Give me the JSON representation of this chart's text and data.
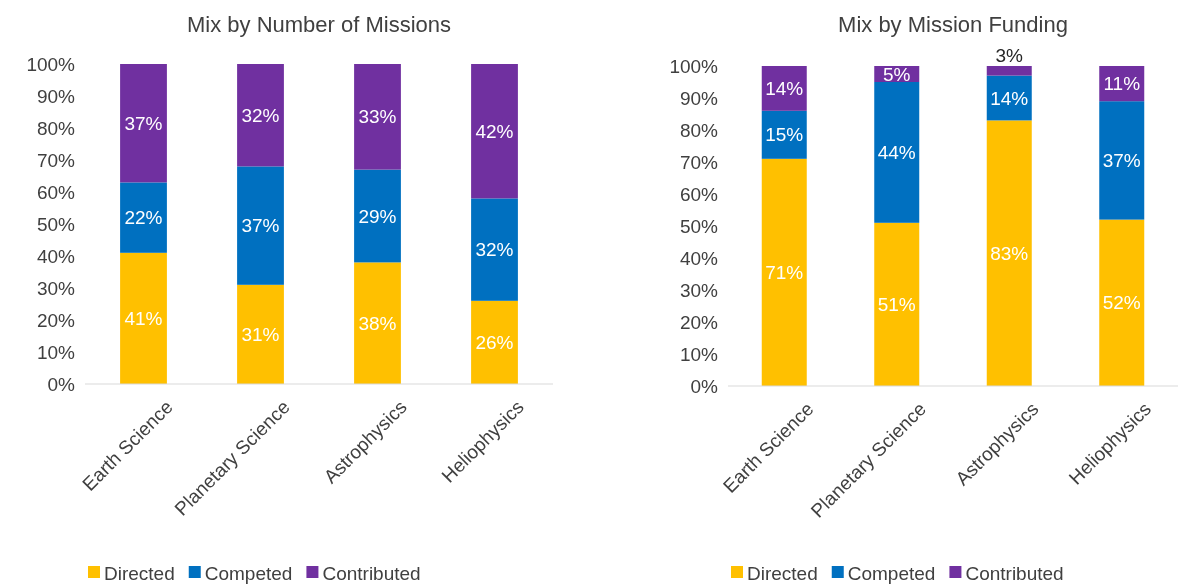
{
  "chart_data": [
    {
      "type": "bar",
      "title": "Mix by Number of Missions",
      "stacked": true,
      "legend": "bottom",
      "grid": false,
      "categories": [
        "Earth Science",
        "Planetary Science",
        "Astrophysics",
        "Heliophysics"
      ],
      "ylim": [
        0,
        100
      ],
      "yticks": [
        {
          "value": 0,
          "label": "0%"
        },
        {
          "value": 10,
          "label": "10%"
        },
        {
          "value": 20,
          "label": "20%"
        },
        {
          "value": 30,
          "label": "30%"
        },
        {
          "value": 40,
          "label": "40%"
        },
        {
          "value": 50,
          "label": "50%"
        },
        {
          "value": 60,
          "label": "60%"
        },
        {
          "value": 70,
          "label": "70%"
        },
        {
          "value": 80,
          "label": "80%"
        },
        {
          "value": 90,
          "label": "90%"
        },
        {
          "value": 100,
          "label": "100%"
        }
      ],
      "series": [
        {
          "name": "Directed",
          "color": "#ffc000",
          "values": [
            41,
            31,
            38,
            26
          ],
          "value_labels": [
            "41%",
            "31%",
            "38%",
            "26%"
          ]
        },
        {
          "name": "Competed",
          "color": "#0070c0",
          "values": [
            22,
            37,
            29,
            32
          ],
          "value_labels": [
            "22%",
            "37%",
            "29%",
            "32%"
          ]
        },
        {
          "name": "Contributed",
          "color": "#7030a0",
          "values": [
            37,
            32,
            33,
            42
          ],
          "value_labels": [
            "37%",
            "32%",
            "33%",
            "42%"
          ]
        }
      ]
    },
    {
      "type": "bar",
      "title": "Mix by Mission Funding",
      "stacked": true,
      "legend": "bottom",
      "grid": false,
      "categories": [
        "Earth Science",
        "Planetary Science",
        "Astrophysics",
        "Heliophysics"
      ],
      "ylim": [
        0,
        100
      ],
      "yticks": [
        {
          "value": 0,
          "label": "0%"
        },
        {
          "value": 10,
          "label": "10%"
        },
        {
          "value": 20,
          "label": "20%"
        },
        {
          "value": 30,
          "label": "30%"
        },
        {
          "value": 40,
          "label": "40%"
        },
        {
          "value": 50,
          "label": "50%"
        },
        {
          "value": 60,
          "label": "60%"
        },
        {
          "value": 70,
          "label": "70%"
        },
        {
          "value": 80,
          "label": "80%"
        },
        {
          "value": 90,
          "label": "90%"
        },
        {
          "value": 100,
          "label": "100%"
        }
      ],
      "series": [
        {
          "name": "Directed",
          "color": "#ffc000",
          "values": [
            71,
            51,
            83,
            52
          ],
          "value_labels": [
            "71%",
            "51%",
            "83%",
            "52%"
          ]
        },
        {
          "name": "Competed",
          "color": "#0070c0",
          "values": [
            15,
            44,
            14,
            37
          ],
          "value_labels": [
            "15%",
            "44%",
            "14%",
            "37%"
          ]
        },
        {
          "name": "Contributed",
          "color": "#7030a0",
          "values": [
            14,
            5,
            3,
            11
          ],
          "value_labels": [
            "14%",
            "5%",
            "3%",
            "11%"
          ]
        }
      ]
    }
  ]
}
